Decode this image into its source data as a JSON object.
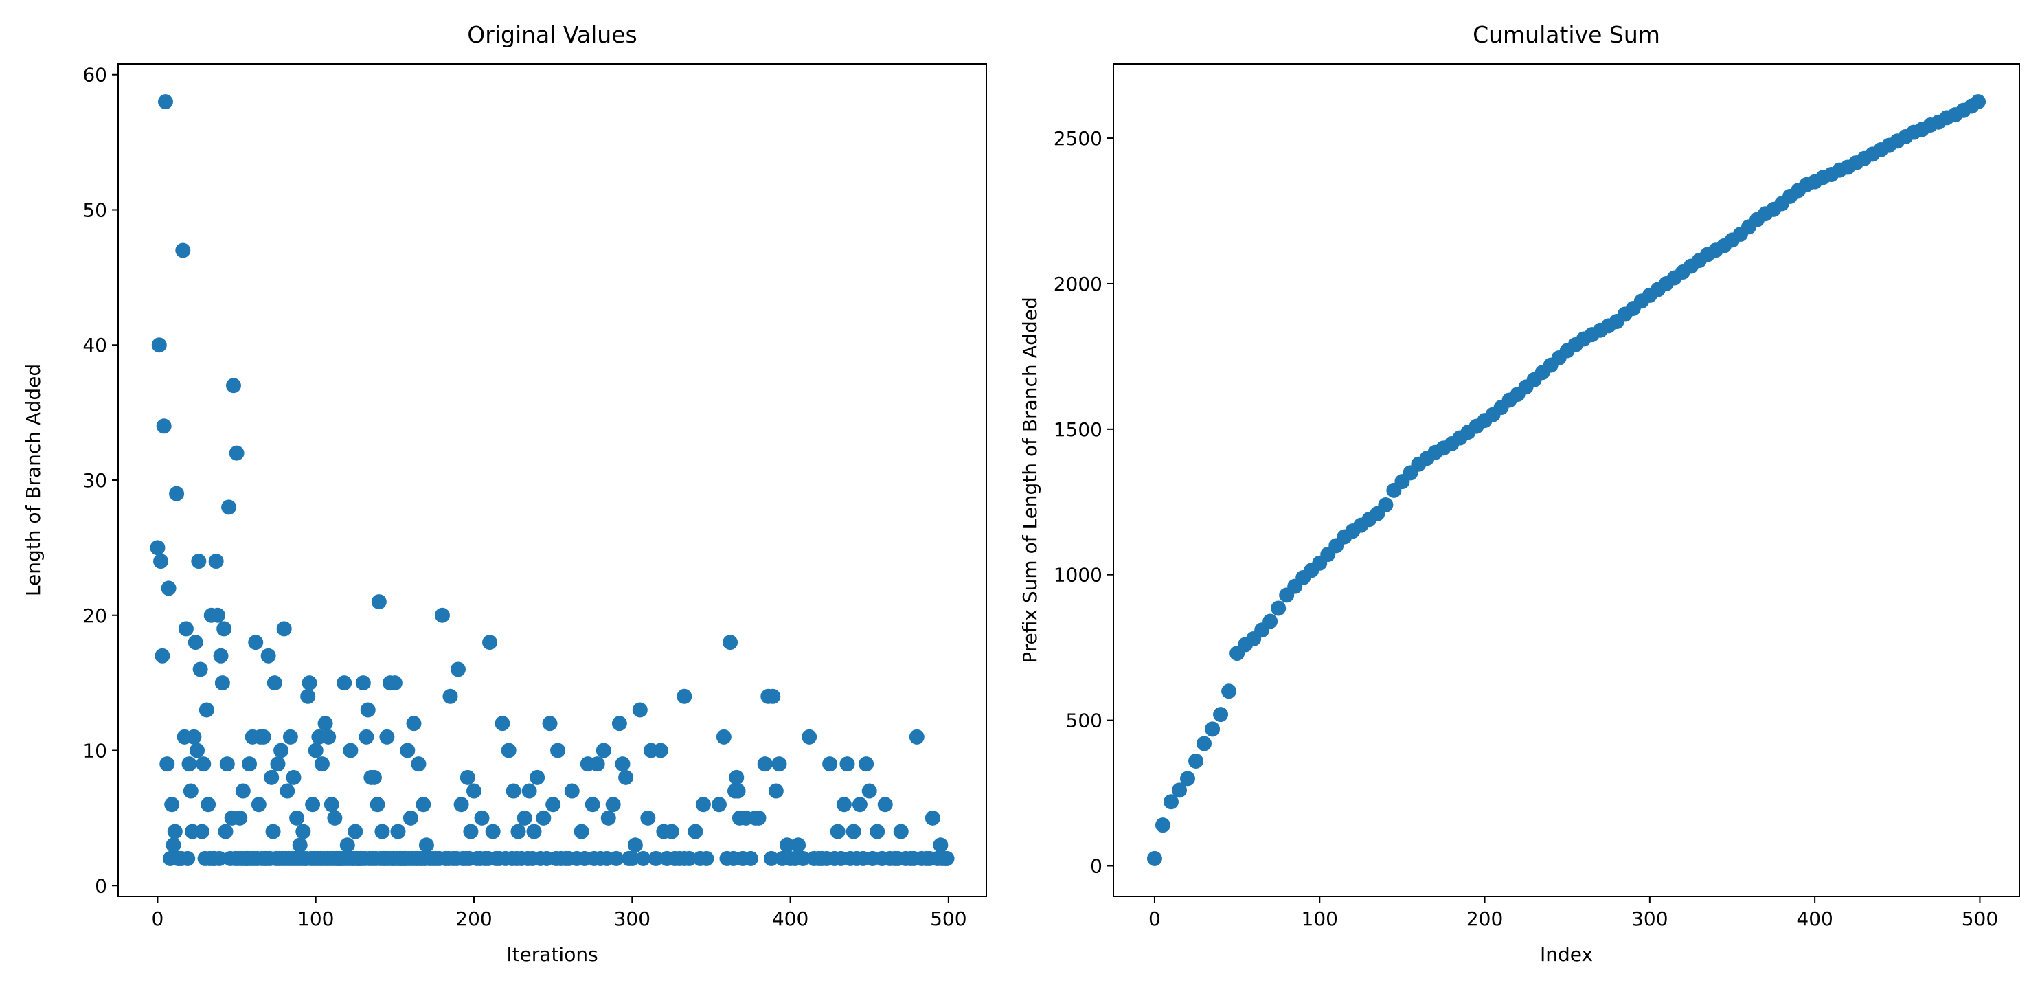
{
  "chart_data": [
    {
      "type": "scatter",
      "title": "Original Values",
      "xlabel": "Iterations",
      "ylabel": "Length of Branch Added",
      "color": "#1f77b4",
      "xlim": [
        -24.95,
        523.95
      ],
      "ylim": [
        -0.8,
        60.8
      ],
      "xticks": [
        0,
        100,
        200,
        300,
        400,
        500
      ],
      "yticks": [
        0,
        10,
        20,
        30,
        40,
        50,
        60
      ],
      "x": [
        0,
        1,
        2,
        3,
        4,
        5,
        6,
        7,
        8,
        9,
        10,
        11,
        12,
        15,
        16,
        17,
        18,
        20,
        21,
        22,
        23,
        24,
        25,
        26,
        27,
        28,
        29,
        30,
        31,
        32,
        34,
        36,
        37,
        38,
        40,
        41,
        42,
        43,
        44,
        45,
        47,
        48,
        50,
        52,
        54,
        56,
        58,
        60,
        62,
        64,
        65,
        67,
        70,
        72,
        73,
        74,
        76,
        78,
        80,
        82,
        84,
        86,
        88,
        90,
        92,
        95,
        96,
        98,
        100,
        102,
        104,
        106,
        108,
        110,
        112,
        115,
        118,
        120,
        122,
        125,
        130,
        132,
        133,
        135,
        137,
        139,
        140,
        142,
        145,
        147,
        150,
        152,
        155,
        158,
        160,
        162,
        165,
        168,
        170,
        180,
        185,
        190,
        192,
        196,
        198,
        200,
        205,
        210,
        212,
        218,
        222,
        225,
        228,
        232,
        235,
        238,
        240,
        244,
        248,
        250,
        253,
        258,
        262,
        268,
        272,
        275,
        278,
        282,
        285,
        288,
        292,
        294,
        296,
        302,
        305,
        310,
        312,
        318,
        320,
        325,
        333,
        340,
        345,
        355,
        358,
        362,
        365,
        367,
        366,
        368,
        372,
        378,
        380,
        386,
        384,
        389,
        391,
        393,
        398,
        405,
        412,
        425,
        430,
        434,
        436,
        440,
        444,
        448,
        450,
        455,
        460,
        470,
        480,
        490,
        495,
        498,
        13,
        14,
        19,
        33,
        35,
        39,
        46,
        49,
        51,
        53,
        55,
        57,
        59,
        61,
        63,
        66,
        68,
        69,
        71,
        75,
        77,
        79,
        81,
        83,
        85,
        87,
        89,
        91,
        93,
        94,
        97,
        99,
        101,
        103,
        105,
        107,
        109,
        111,
        113,
        114,
        116,
        117,
        119,
        121,
        123,
        124,
        126,
        127,
        128,
        129,
        131,
        134,
        136,
        138,
        141,
        143,
        144,
        146,
        148,
        149,
        151,
        153,
        154,
        156,
        157,
        159,
        161,
        163,
        164,
        166,
        167,
        169,
        172,
        174,
        176,
        178,
        182,
        184,
        187,
        189,
        193,
        195,
        197,
        202,
        204,
        207,
        209,
        214,
        216,
        220,
        224,
        227,
        230,
        234,
        237,
        242,
        246,
        252,
        255,
        260,
        265,
        270,
        276,
        280,
        284,
        290,
        298,
        300,
        307,
        315,
        322,
        327,
        330,
        333,
        336,
        343,
        347,
        360,
        364,
        370,
        375,
        388,
        395,
        400,
        403,
        408,
        415,
        418,
        420,
        423,
        428,
        432,
        438,
        442,
        446,
        452,
        458,
        463,
        466,
        468,
        473,
        476,
        478,
        483,
        486,
        488,
        493,
        496,
        499
      ],
      "values": [
        25,
        40,
        24,
        17,
        34,
        58,
        9,
        22,
        2,
        6,
        3,
        4,
        29,
        2,
        47,
        11,
        19,
        9,
        7,
        4,
        11,
        18,
        10,
        24,
        16,
        4,
        9,
        2,
        13,
        6,
        20,
        2,
        24,
        20,
        17,
        15,
        19,
        4,
        9,
        28,
        5,
        37,
        32,
        5,
        7,
        2,
        9,
        11,
        18,
        6,
        11,
        11,
        17,
        8,
        4,
        15,
        9,
        10,
        19,
        7,
        11,
        8,
        5,
        3,
        4,
        14,
        15,
        6,
        10,
        11,
        9,
        12,
        11,
        6,
        5,
        2,
        15,
        3,
        10,
        4,
        15,
        11,
        13,
        8,
        8,
        6,
        21,
        4,
        11,
        15,
        15,
        4,
        2,
        10,
        5,
        12,
        9,
        6,
        3,
        20,
        14,
        16,
        6,
        8,
        4,
        7,
        5,
        18,
        4,
        12,
        10,
        7,
        4,
        5,
        7,
        4,
        8,
        5,
        12,
        6,
        10,
        2,
        7,
        4,
        9,
        6,
        9,
        10,
        5,
        6,
        12,
        9,
        8,
        3,
        13,
        5,
        10,
        10,
        4,
        4,
        14,
        4,
        6,
        6,
        11,
        18,
        7,
        7,
        8,
        5,
        5,
        5,
        5,
        14,
        9,
        14,
        7,
        9,
        3,
        3,
        11,
        9,
        4,
        6,
        9,
        4,
        6,
        9,
        7,
        4,
        6,
        4,
        11,
        5,
        3,
        2,
        2,
        2,
        2,
        2,
        2,
        2,
        2,
        2,
        2,
        2,
        2,
        2,
        2,
        2,
        2,
        2,
        2,
        2,
        2,
        2,
        2,
        2,
        2,
        2,
        2,
        2,
        2,
        2,
        2,
        2,
        2,
        2,
        2,
        2,
        2,
        2,
        2,
        2,
        2,
        2,
        2,
        2,
        2,
        2,
        2,
        2,
        2,
        2,
        2,
        2,
        2,
        2,
        2,
        2,
        2,
        2,
        2,
        2,
        2,
        2,
        2,
        2,
        2,
        2,
        2,
        2,
        2,
        2,
        2,
        2,
        2,
        2,
        2,
        2,
        2,
        2,
        2,
        2,
        2,
        2,
        2,
        2,
        2,
        2,
        2,
        2,
        2,
        2,
        2,
        2,
        2,
        2,
        2,
        2,
        2,
        2,
        2,
        2,
        2,
        2,
        2,
        2,
        2,
        2,
        2,
        2,
        2,
        2,
        2,
        2,
        2,
        2,
        2,
        2,
        2,
        2,
        2,
        2,
        2,
        2,
        2,
        2,
        2,
        2,
        2,
        2,
        2,
        2,
        2,
        2,
        2,
        2,
        2,
        2,
        2,
        2,
        2,
        2,
        2,
        2,
        2,
        2,
        2,
        2,
        2,
        2,
        2,
        2,
        2
      ]
    },
    {
      "type": "scatter",
      "title": "Cumulative Sum",
      "xlabel": "Index",
      "ylabel": "Prefix Sum of Length of Branch Added",
      "color": "#1f77b4",
      "xlim": [
        -24.95,
        523.95
      ],
      "ylim": [
        -105,
        2755
      ],
      "xticks": [
        0,
        100,
        200,
        300,
        400,
        500
      ],
      "yticks": [
        0,
        500,
        1000,
        1500,
        2000,
        2500
      ],
      "x": [
        0,
        5,
        10,
        15,
        20,
        25,
        30,
        35,
        40,
        45,
        50,
        55,
        60,
        65,
        70,
        75,
        80,
        85,
        90,
        95,
        100,
        105,
        110,
        115,
        120,
        125,
        130,
        135,
        140,
        145,
        150,
        155,
        160,
        165,
        170,
        175,
        180,
        185,
        190,
        195,
        200,
        205,
        210,
        215,
        220,
        225,
        230,
        235,
        240,
        245,
        250,
        255,
        260,
        265,
        270,
        275,
        280,
        285,
        290,
        295,
        300,
        305,
        310,
        315,
        320,
        325,
        330,
        335,
        340,
        345,
        350,
        355,
        360,
        365,
        370,
        375,
        380,
        385,
        390,
        395,
        400,
        405,
        410,
        415,
        420,
        425,
        430,
        435,
        440,
        445,
        450,
        455,
        460,
        465,
        470,
        475,
        480,
        485,
        490,
        495,
        499
      ],
      "values": [
        25,
        140,
        220,
        260,
        300,
        360,
        420,
        470,
        520,
        600,
        730,
        760,
        780,
        810,
        840,
        885,
        930,
        960,
        990,
        1015,
        1040,
        1070,
        1100,
        1130,
        1150,
        1170,
        1190,
        1210,
        1240,
        1290,
        1320,
        1350,
        1380,
        1400,
        1420,
        1435,
        1450,
        1470,
        1490,
        1510,
        1530,
        1550,
        1575,
        1600,
        1620,
        1645,
        1670,
        1695,
        1720,
        1745,
        1770,
        1790,
        1810,
        1825,
        1840,
        1855,
        1870,
        1895,
        1915,
        1940,
        1960,
        1980,
        2000,
        2020,
        2040,
        2060,
        2080,
        2100,
        2115,
        2130,
        2150,
        2170,
        2195,
        2220,
        2240,
        2255,
        2275,
        2300,
        2320,
        2340,
        2350,
        2365,
        2375,
        2390,
        2400,
        2415,
        2430,
        2445,
        2460,
        2475,
        2490,
        2505,
        2520,
        2530,
        2545,
        2555,
        2570,
        2580,
        2595,
        2610,
        2625
      ]
    }
  ]
}
